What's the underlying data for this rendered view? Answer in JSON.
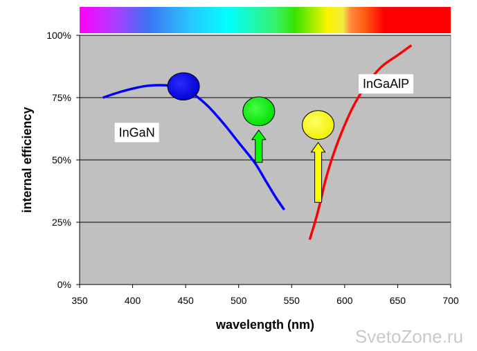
{
  "chart_data": {
    "type": "line",
    "xlabel": "wavelength (nm)",
    "ylabel": "internal efficiency",
    "xlim": [
      350,
      700
    ],
    "ylim": [
      0,
      100
    ],
    "x_ticks": [
      350,
      400,
      450,
      500,
      550,
      600,
      650,
      700
    ],
    "x_tick_labels": [
      "350",
      "400",
      "450",
      "500",
      "550",
      "600",
      "650",
      "700"
    ],
    "y_ticks": [
      0,
      25,
      50,
      75,
      100
    ],
    "y_tick_labels": [
      "0%",
      "25%",
      "50%",
      "75%",
      "100%"
    ],
    "grid": "horizontal",
    "spectrum_bar": true,
    "series": [
      {
        "name": "InGaN",
        "color": "#0000ff",
        "label_at": [
          404,
          61
        ],
        "points": [
          [
            372,
            75
          ],
          [
            390,
            77.5
          ],
          [
            410,
            79.5
          ],
          [
            425,
            80
          ],
          [
            440,
            79.5
          ],
          [
            455,
            77
          ],
          [
            470,
            72
          ],
          [
            485,
            65
          ],
          [
            500,
            57
          ],
          [
            515,
            49
          ],
          [
            525,
            42
          ],
          [
            535,
            35
          ],
          [
            543,
            30
          ]
        ]
      },
      {
        "name": "InGaAlP",
        "color": "#ff0000",
        "label_at": [
          639,
          80.5
        ],
        "points": [
          [
            567,
            18
          ],
          [
            572,
            25
          ],
          [
            577,
            33
          ],
          [
            582,
            42
          ],
          [
            590,
            53
          ],
          [
            600,
            64
          ],
          [
            610,
            73
          ],
          [
            622,
            81
          ],
          [
            635,
            87.5
          ],
          [
            650,
            92
          ],
          [
            663,
            96
          ]
        ]
      }
    ],
    "markers": [
      {
        "name": "blue-led",
        "color": "#0000ff",
        "x": 448,
        "y": 79.5,
        "rx_nm": 15,
        "ry_pct": 5.5
      },
      {
        "name": "green-led",
        "color": "#00ff00",
        "x": 519,
        "y": 69.5,
        "rx_nm": 15,
        "ry_pct": 5.8
      },
      {
        "name": "yellow-led",
        "color": "#ffff00",
        "x": 575,
        "y": 64,
        "rx_nm": 15,
        "ry_pct": 5.8
      }
    ],
    "arrows": [
      {
        "name": "green-arrow",
        "color": "#00ff00",
        "x": 519,
        "y_from": 49,
        "y_to": 62
      },
      {
        "name": "yellow-arrow",
        "color": "#ffff00",
        "x": 575,
        "y_from": 33,
        "y_to": 57
      }
    ]
  },
  "watermark": "SvetoZone.ru"
}
